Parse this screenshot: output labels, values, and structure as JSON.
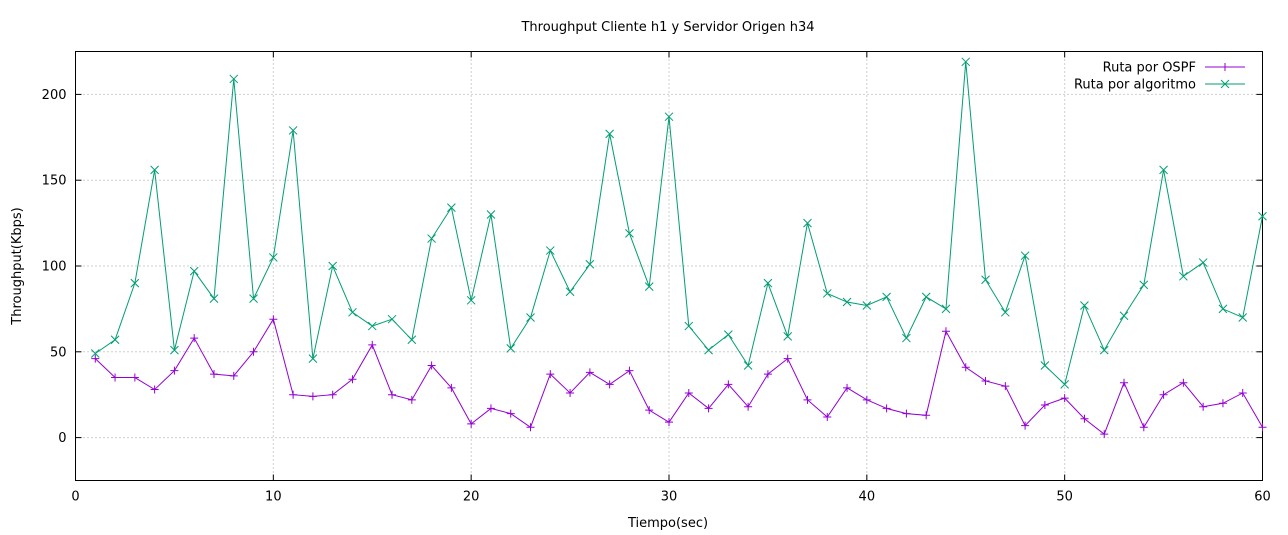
{
  "chart_data": {
    "type": "line",
    "title": "Throughput Cliente h1 y Servidor Origen h34",
    "xlabel": "Tiempo(sec)",
    "ylabel": "Throughput(Kbps)",
    "xlim": [
      0,
      60
    ],
    "ylim": [
      -25,
      225
    ],
    "xticks": [
      0,
      10,
      20,
      30,
      40,
      50,
      60
    ],
    "yticks": [
      0,
      50,
      100,
      150,
      200
    ],
    "grid": true,
    "legend_position": "top-right",
    "x": [
      1,
      2,
      3,
      4,
      5,
      6,
      7,
      8,
      9,
      10,
      11,
      12,
      13,
      14,
      15,
      16,
      17,
      18,
      19,
      20,
      21,
      22,
      23,
      24,
      25,
      26,
      27,
      28,
      29,
      30,
      31,
      32,
      33,
      34,
      35,
      36,
      37,
      38,
      39,
      40,
      41,
      42,
      43,
      44,
      45,
      46,
      47,
      48,
      49,
      50,
      51,
      52,
      53,
      54,
      55,
      56,
      57,
      58,
      59,
      60
    ],
    "series": [
      {
        "name": "Ruta por OSPF",
        "color": "#9400d3",
        "marker": "plus",
        "values": [
          46,
          35,
          35,
          28,
          39,
          58,
          37,
          36,
          50,
          69,
          25,
          24,
          25,
          34,
          54,
          25,
          22,
          42,
          29,
          8,
          17,
          14,
          6,
          37,
          26,
          38,
          31,
          39,
          16,
          9,
          26,
          17,
          31,
          18,
          37,
          46,
          22,
          12,
          29,
          22,
          17,
          14,
          13,
          62,
          41,
          33,
          30,
          7,
          19,
          23,
          11,
          2,
          32,
          6,
          25,
          32,
          18,
          20,
          26,
          6
        ]
      },
      {
        "name": "Ruta por algoritmo",
        "color": "#009e73",
        "marker": "x",
        "values": [
          49,
          57,
          90,
          156,
          51,
          97,
          81,
          209,
          81,
          105,
          179,
          46,
          100,
          73,
          65,
          69,
          57,
          116,
          134,
          80,
          130,
          52,
          70,
          109,
          85,
          101,
          177,
          119,
          88,
          187,
          65,
          51,
          60,
          42,
          90,
          59,
          125,
          84,
          79,
          77,
          82,
          58,
          82,
          75,
          219,
          92,
          73,
          106,
          42,
          31,
          77,
          51,
          71,
          89,
          156,
          94,
          102,
          75,
          70,
          129
        ]
      }
    ]
  }
}
